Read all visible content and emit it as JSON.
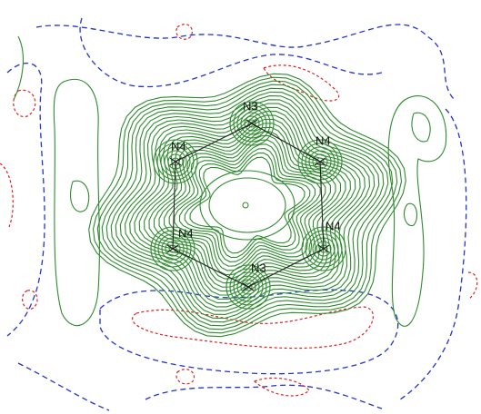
{
  "atoms": [
    {
      "label": "N3"
    },
    {
      "label": "N4"
    },
    {
      "label": "N4"
    },
    {
      "label": "N4"
    },
    {
      "label": "N4"
    },
    {
      "label": "N3"
    }
  ]
}
